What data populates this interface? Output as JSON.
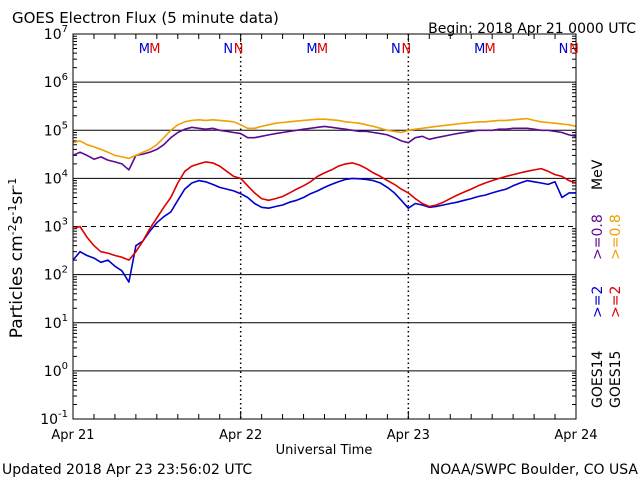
{
  "header": {
    "title": "GOES Electron Flux (5 minute data)",
    "begin": "Begin: 2018 Apr 21 0000 UTC"
  },
  "footer": {
    "updated": "Updated 2018 Apr 23 23:56:02 UTC",
    "credit": "NOAA/SWPC Boulder, CO USA"
  },
  "colors": {
    "goes14_gt2": "#0000cc",
    "goes15_gt2": "#dd0000",
    "goes14_gt08": "#5b0a91",
    "goes15_gt08": "#f0a000"
  },
  "chart_data": {
    "type": "line",
    "title": "GOES Electron Flux (5 minute data)",
    "xlabel": "Universal Time",
    "ylabel_base": "Particles cm",
    "y_scale": "log",
    "ylim": [
      0.1,
      10000000
    ],
    "xlim": [
      0,
      72
    ],
    "x_unit": "hours since 2018 Apr 21 0000 UTC",
    "x_ticks": [
      {
        "label": "Apr 21",
        "x": 0
      },
      {
        "label": "Apr 22",
        "x": 24
      },
      {
        "label": "Apr 23",
        "x": 48
      },
      {
        "label": "Apr 24",
        "x": 72
      }
    ],
    "y_ticks": [
      {
        "mant": "10",
        "exp": "7",
        "v": 10000000
      },
      {
        "mant": "10",
        "exp": "6",
        "v": 1000000
      },
      {
        "mant": "10",
        "exp": "5",
        "v": 100000
      },
      {
        "mant": "10",
        "exp": "4",
        "v": 10000
      },
      {
        "mant": "10",
        "exp": "3",
        "v": 1000
      },
      {
        "mant": "10",
        "exp": "2",
        "v": 100
      },
      {
        "mant": "10",
        "exp": "1",
        "v": 10
      },
      {
        "mant": "10",
        "exp": "0",
        "v": 1
      },
      {
        "mant": "10",
        "exp": "-1",
        "v": 0.1
      }
    ],
    "threshold": 1000,
    "markers": [
      {
        "x": 10.5,
        "label": "M",
        "color": "#0000cc"
      },
      {
        "x": 12.0,
        "label": "M",
        "color": "#dd0000"
      },
      {
        "x": 22.5,
        "label": "N",
        "color": "#0000cc"
      },
      {
        "x": 24.0,
        "label": "N",
        "color": "#dd0000"
      },
      {
        "x": 34.5,
        "label": "M",
        "color": "#0000cc"
      },
      {
        "x": 36.0,
        "label": "M",
        "color": "#dd0000"
      },
      {
        "x": 46.5,
        "label": "N",
        "color": "#0000cc"
      },
      {
        "x": 48.0,
        "label": "N",
        "color": "#dd0000"
      },
      {
        "x": 58.5,
        "label": "M",
        "color": "#0000cc"
      },
      {
        "x": 60.0,
        "label": "M",
        "color": "#dd0000"
      },
      {
        "x": 70.5,
        "label": "N",
        "color": "#0000cc"
      },
      {
        "x": 72.0,
        "label": "N",
        "color": "#dd0000"
      }
    ],
    "dotted_x": [
      24,
      48
    ],
    "legend": [
      {
        "sat": "GOES14",
        "range": ">=2",
        "sat_range": ">=0.8",
        "unit": "MeV"
      },
      {
        "sat": "GOES15",
        "range": ">=2",
        "sat_range": ">=0.8"
      }
    ],
    "series": [
      {
        "name": "GOES14 >=2 MeV",
        "color": "#0000cc",
        "x": [
          0,
          1,
          2,
          3,
          4,
          5,
          6,
          7,
          8,
          9,
          10,
          11,
          12,
          13,
          14,
          15,
          16,
          17,
          18,
          19,
          20,
          21,
          22,
          23,
          24,
          25,
          26,
          27,
          28,
          29,
          30,
          31,
          32,
          33,
          34,
          35,
          36,
          37,
          38,
          39,
          40,
          41,
          42,
          43,
          44,
          45,
          46,
          47,
          48,
          49,
          50,
          51,
          52,
          53,
          54,
          55,
          56,
          57,
          58,
          59,
          60,
          61,
          62,
          63,
          64,
          65,
          66,
          67,
          68,
          69,
          70,
          71,
          72
        ],
        "values": [
          200,
          300,
          250,
          220,
          180,
          200,
          150,
          120,
          70,
          400,
          500,
          800,
          1200,
          1600,
          2000,
          3500,
          6000,
          8000,
          9000,
          8500,
          7500,
          6500,
          6000,
          5500,
          4800,
          4000,
          3000,
          2500,
          2400,
          2600,
          2800,
          3200,
          3500,
          4000,
          4800,
          5500,
          6500,
          7500,
          8500,
          9500,
          10000,
          9800,
          9500,
          9000,
          8000,
          6500,
          5000,
          3500,
          2400,
          3000,
          2800,
          2500,
          2600,
          2800,
          3000,
          3200,
          3500,
          3800,
          4200,
          4500,
          5000,
          5500,
          6000,
          7000,
          8000,
          9000,
          8500,
          8000,
          7500,
          8500,
          4000,
          5000,
          5000
        ]
      },
      {
        "name": "GOES15 >=2 MeV",
        "color": "#dd0000",
        "x": [
          0,
          1,
          2,
          3,
          4,
          5,
          6,
          7,
          8,
          9,
          10,
          11,
          12,
          13,
          14,
          15,
          16,
          17,
          18,
          19,
          20,
          21,
          22,
          23,
          24,
          25,
          26,
          27,
          28,
          29,
          30,
          31,
          32,
          33,
          34,
          35,
          36,
          37,
          38,
          39,
          40,
          41,
          42,
          43,
          44,
          45,
          46,
          47,
          48,
          49,
          50,
          51,
          52,
          53,
          54,
          55,
          56,
          57,
          58,
          59,
          60,
          61,
          62,
          63,
          64,
          65,
          66,
          67,
          68,
          69,
          70,
          71,
          72
        ],
        "values": [
          900,
          1000,
          600,
          400,
          300,
          280,
          250,
          230,
          200,
          300,
          500,
          900,
          1500,
          2500,
          4000,
          8000,
          14000,
          18000,
          20000,
          22000,
          21000,
          18000,
          14000,
          11000,
          10000,
          7000,
          5000,
          3800,
          3500,
          3800,
          4200,
          5000,
          6000,
          7000,
          8500,
          11000,
          13000,
          15000,
          18000,
          20000,
          21000,
          19000,
          16000,
          13000,
          11000,
          9000,
          7500,
          6000,
          5000,
          3800,
          3000,
          2600,
          2800,
          3200,
          3800,
          4500,
          5200,
          6000,
          7000,
          8000,
          9000,
          10000,
          11000,
          12000,
          13000,
          14000,
          15000,
          16000,
          14000,
          12000,
          11000,
          9000,
          8000
        ]
      },
      {
        "name": "GOES14 >=0.8 MeV",
        "color": "#5b0a91",
        "x": [
          0,
          1,
          2,
          3,
          4,
          5,
          6,
          7,
          8,
          9,
          10,
          11,
          12,
          13,
          14,
          15,
          16,
          17,
          18,
          19,
          20,
          21,
          22,
          23,
          24,
          25,
          26,
          27,
          28,
          29,
          30,
          31,
          32,
          33,
          34,
          35,
          36,
          37,
          38,
          39,
          40,
          41,
          42,
          43,
          44,
          45,
          46,
          47,
          48,
          49,
          50,
          51,
          52,
          53,
          54,
          55,
          56,
          57,
          58,
          59,
          60,
          61,
          62,
          63,
          64,
          65,
          66,
          67,
          68,
          69,
          70,
          71,
          72
        ],
        "values": [
          30000,
          35000,
          30000,
          25000,
          28000,
          24000,
          22000,
          20000,
          15000,
          30000,
          32000,
          35000,
          40000,
          50000,
          70000,
          90000,
          105000,
          115000,
          110000,
          105000,
          110000,
          100000,
          95000,
          90000,
          85000,
          70000,
          70000,
          75000,
          80000,
          85000,
          90000,
          95000,
          100000,
          105000,
          110000,
          115000,
          120000,
          115000,
          110000,
          105000,
          100000,
          95000,
          95000,
          90000,
          85000,
          80000,
          70000,
          60000,
          55000,
          70000,
          75000,
          65000,
          70000,
          75000,
          80000,
          85000,
          90000,
          95000,
          100000,
          100000,
          100000,
          105000,
          105000,
          110000,
          110000,
          110000,
          105000,
          100000,
          100000,
          95000,
          90000,
          80000,
          75000
        ]
      },
      {
        "name": "GOES15 >=0.8 MeV",
        "color": "#f0a000",
        "x": [
          0,
          1,
          2,
          3,
          4,
          5,
          6,
          7,
          8,
          9,
          10,
          11,
          12,
          13,
          14,
          15,
          16,
          17,
          18,
          19,
          20,
          21,
          22,
          23,
          24,
          25,
          26,
          27,
          28,
          29,
          30,
          31,
          32,
          33,
          34,
          35,
          36,
          37,
          38,
          39,
          40,
          41,
          42,
          43,
          44,
          45,
          46,
          47,
          48,
          49,
          50,
          51,
          52,
          53,
          54,
          55,
          56,
          57,
          58,
          59,
          60,
          61,
          62,
          63,
          64,
          65,
          66,
          67,
          68,
          69,
          70,
          71,
          72
        ],
        "values": [
          55000,
          60000,
          50000,
          45000,
          40000,
          35000,
          30000,
          28000,
          26000,
          30000,
          35000,
          40000,
          50000,
          70000,
          100000,
          130000,
          150000,
          160000,
          165000,
          160000,
          165000,
          160000,
          155000,
          150000,
          130000,
          110000,
          110000,
          120000,
          130000,
          140000,
          145000,
          150000,
          155000,
          160000,
          165000,
          170000,
          170000,
          165000,
          160000,
          150000,
          145000,
          140000,
          130000,
          120000,
          110000,
          100000,
          95000,
          90000,
          100000,
          105000,
          110000,
          115000,
          120000,
          125000,
          130000,
          135000,
          140000,
          145000,
          150000,
          150000,
          155000,
          160000,
          160000,
          165000,
          170000,
          175000,
          160000,
          150000,
          145000,
          140000,
          135000,
          130000,
          120000
        ]
      }
    ]
  }
}
